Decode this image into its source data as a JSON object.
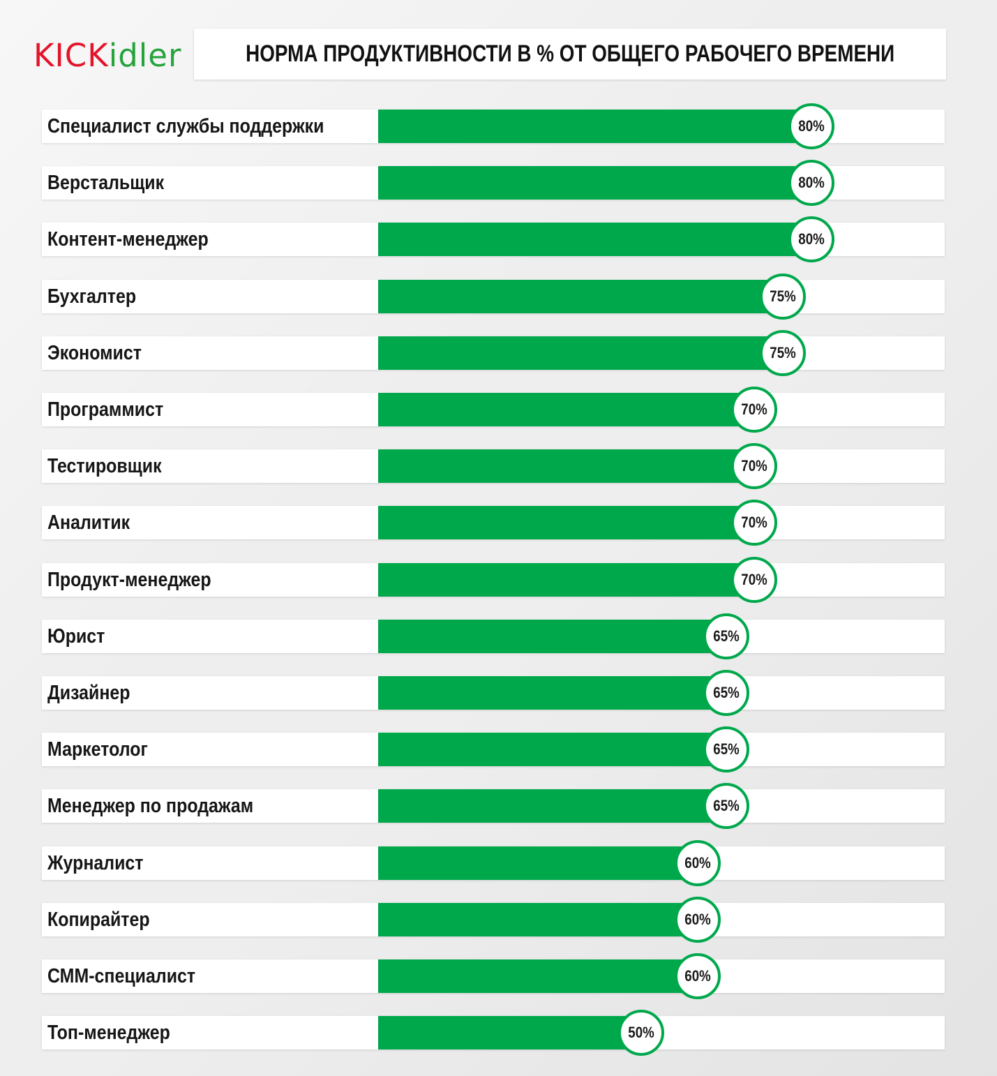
{
  "header": {
    "logo": {
      "kick": "KICK",
      "idler": "idler"
    },
    "title": "НОРМА ПРОДУКТИВНОСТИ В % ОТ ОБЩЕГО РАБОЧЕГО ВРЕМЕНИ"
  },
  "colors": {
    "bar": "#00a84c",
    "logo_red": "#e3142a",
    "logo_green": "#26a33c"
  },
  "chart_data": {
    "type": "bar",
    "orientation": "horizontal",
    "title": "НОРМА ПРОДУКТИВНОСТИ В % ОТ ОБЩЕГО РАБОЧЕГО ВРЕМЕНИ",
    "xlabel": "",
    "ylabel": "",
    "xlim": [
      0,
      100
    ],
    "grid": false,
    "categories": [
      "Специалист службы поддержки",
      "Верстальщик",
      "Контент-менеджер",
      "Бухгалтер",
      "Экономист",
      "Программист",
      "Тестировщик",
      "Аналитик",
      "Продукт-менеджер",
      "Юрист",
      "Дизайнер",
      "Маркетолог",
      "Менеджер по продажам",
      "Журналист",
      "Копирайтер",
      "СММ-специалист",
      "Топ-менеджер"
    ],
    "values": [
      80,
      80,
      80,
      75,
      75,
      70,
      70,
      70,
      70,
      65,
      65,
      65,
      65,
      60,
      60,
      60,
      50
    ],
    "value_labels": [
      "80%",
      "80%",
      "80%",
      "75%",
      "75%",
      "70%",
      "70%",
      "70%",
      "70%",
      "65%",
      "65%",
      "65%",
      "65%",
      "60%",
      "60%",
      "60%",
      "50%"
    ]
  }
}
